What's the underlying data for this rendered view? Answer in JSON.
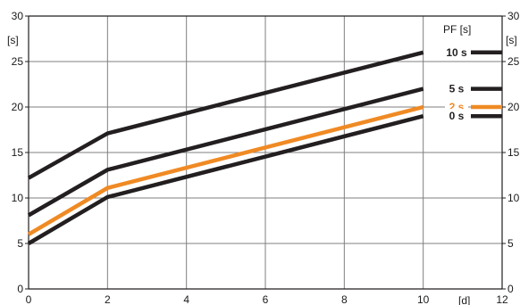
{
  "chart_data": {
    "type": "line",
    "title": "",
    "xlabel": "[d]",
    "ylabel": "[s]",
    "ylabel_right": "[s]",
    "xlim": [
      0,
      12
    ],
    "ylim": [
      0,
      30
    ],
    "x_ticks": [
      0,
      2,
      4,
      6,
      8,
      10,
      12
    ],
    "y_ticks": [
      0,
      5,
      10,
      15,
      20,
      25,
      30
    ],
    "grid": true,
    "legend_title": "PF [s]",
    "legend_placement": "right",
    "x": [
      0,
      2,
      10
    ],
    "series": [
      {
        "name": "10 s",
        "color": "#231f20",
        "x": [
          0,
          2,
          10
        ],
        "y": [
          12.2,
          17.1,
          26.0
        ]
      },
      {
        "name": "5 s",
        "color": "#231f20",
        "x": [
          0,
          2,
          10
        ],
        "y": [
          8.1,
          13.1,
          22.0
        ]
      },
      {
        "name": "2 s",
        "color": "#f08a24",
        "x": [
          0,
          2,
          10
        ],
        "y": [
          6.0,
          11.1,
          20.0
        ]
      },
      {
        "name": "0 s",
        "color": "#231f20",
        "x": [
          0,
          2,
          10
        ],
        "y": [
          5.0,
          10.1,
          19.0
        ]
      }
    ]
  }
}
